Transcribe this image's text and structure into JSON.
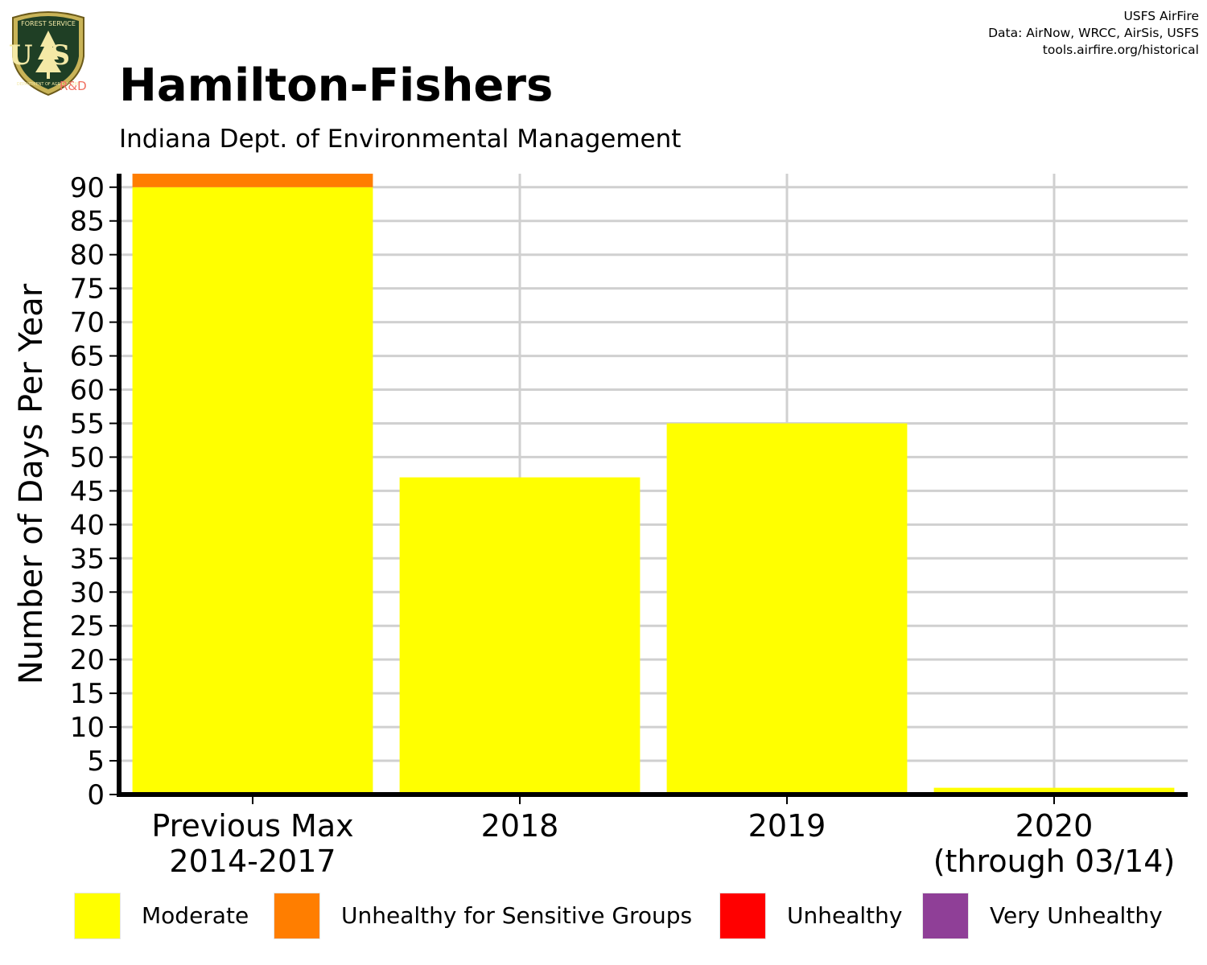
{
  "logo": {
    "shield_text": "US",
    "top_text": "FOREST SERVICE",
    "bottom_text": "DEPARTMENT OF AGRICULTURE",
    "rd_text": "R&D"
  },
  "credits": {
    "line1": "USFS AirFire",
    "line2": "Data: AirNow, WRCC, AirSis, USFS",
    "line3": "tools.airfire.org/historical"
  },
  "chart_data": {
    "type": "bar",
    "stacked": true,
    "title": "Hamilton-Fishers",
    "subtitle": "Indiana Dept. of Environmental Management",
    "ylabel": "Number of Days Per Year",
    "xlabel": "",
    "ylim": [
      0,
      92
    ],
    "yticks": [
      0,
      5,
      10,
      15,
      20,
      25,
      30,
      35,
      40,
      45,
      50,
      55,
      60,
      65,
      70,
      75,
      80,
      85,
      90
    ],
    "grid": true,
    "legend_position": "bottom",
    "categories": [
      [
        "Previous Max",
        "2014-2017"
      ],
      [
        "2018"
      ],
      [
        "2019"
      ],
      [
        "2020",
        "(through 03/14)"
      ]
    ],
    "series": [
      {
        "name": "Moderate",
        "color": "#FFFF00",
        "values": [
          90,
          47,
          55,
          1
        ]
      },
      {
        "name": "Unhealthy for Sensitive Groups",
        "color": "#FF7E00",
        "values": [
          2,
          0,
          0,
          0
        ]
      },
      {
        "name": "Unhealthy",
        "color": "#FF0000",
        "values": [
          0,
          0,
          0,
          0
        ]
      },
      {
        "name": "Very Unhealthy",
        "color": "#8F3F97",
        "values": [
          0,
          0,
          0,
          0
        ]
      }
    ]
  }
}
